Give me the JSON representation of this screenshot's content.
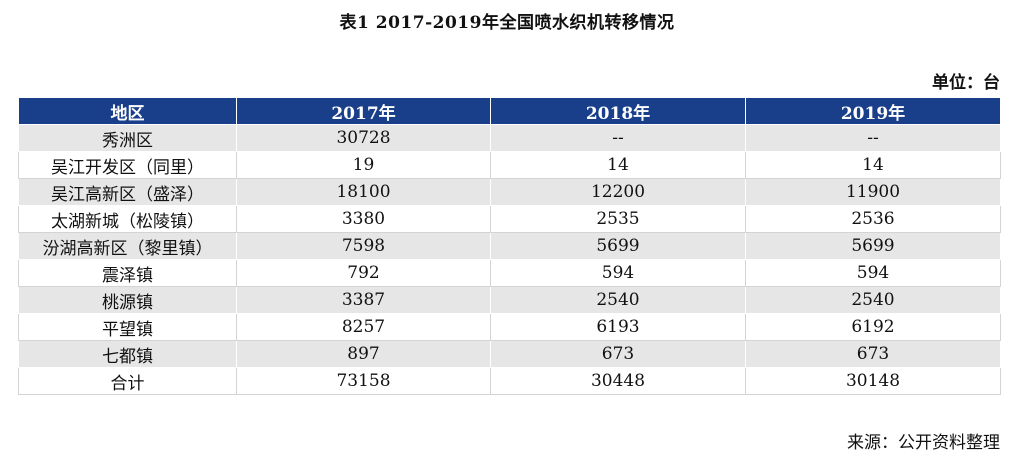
{
  "title": "表1 2017-2019年全国喷水织机转移情况",
  "unit": "单位：台",
  "table": {
    "headers": [
      "地区",
      "2017年",
      "2018年",
      "2019年"
    ],
    "rows": [
      [
        "秀洲区",
        "30728",
        "--",
        "--"
      ],
      [
        "吴江开发区（同里）",
        "19",
        "14",
        "14"
      ],
      [
        "吴江高新区（盛泽）",
        "18100",
        "12200",
        "11900"
      ],
      [
        "太湖新城（松陵镇）",
        "3380",
        "2535",
        "2536"
      ],
      [
        "汾湖高新区（黎里镇）",
        "7598",
        "5699",
        "5699"
      ],
      [
        "震泽镇",
        "792",
        "594",
        "594"
      ],
      [
        "桃源镇",
        "3387",
        "2540",
        "2540"
      ],
      [
        "平望镇",
        "8257",
        "6193",
        "6192"
      ],
      [
        "七都镇",
        "897",
        "673",
        "673"
      ],
      [
        "合计",
        "73158",
        "30448",
        "30148"
      ]
    ]
  },
  "source": "来源：公开资料整理",
  "colors": {
    "header_bg": "#1a3f8a",
    "header_text": "#ffffff",
    "row_alt_bg": "#e6e6e6",
    "row_bg": "#ffffff"
  }
}
